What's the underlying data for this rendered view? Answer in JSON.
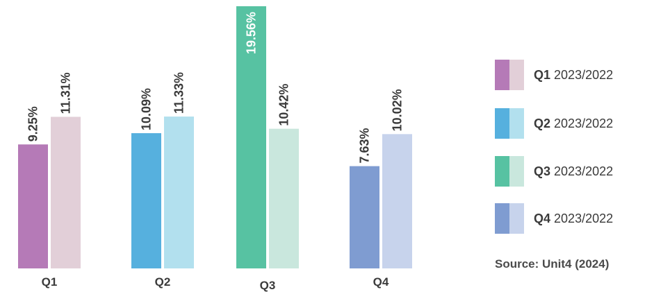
{
  "chart_data": {
    "type": "bar",
    "categories": [
      "Q1",
      "Q2",
      "Q3",
      "Q4"
    ],
    "series": [
      {
        "name": "2023",
        "values": [
          9.25,
          10.09,
          19.56,
          7.63
        ]
      },
      {
        "name": "2022",
        "values": [
          11.31,
          11.33,
          10.42,
          10.02
        ]
      }
    ],
    "data_labels": [
      [
        "9.25%",
        "11.31%"
      ],
      [
        "10.09%",
        "11.33%"
      ],
      [
        "19.56%",
        "10.42%"
      ],
      [
        "7.63%",
        "10.02%"
      ]
    ],
    "colors": [
      [
        "#b57ab7",
        "#e2cfd8"
      ],
      [
        "#56b0de",
        "#b2e0ee"
      ],
      [
        "#57c2a2",
        "#c9e7dd"
      ],
      [
        "#7f9cd1",
        "#c7d3ec"
      ]
    ],
    "ylim": [
      0,
      19.56
    ],
    "grid": false,
    "legend_placement": "right",
    "legend": [
      {
        "quarter": "Q1",
        "period": "2023/2022"
      },
      {
        "quarter": "Q2",
        "period": "2023/2022"
      },
      {
        "quarter": "Q3",
        "period": "2023/2022"
      },
      {
        "quarter": "Q4",
        "period": "2023/2022"
      }
    ],
    "source": "Source: Unit4 (2024)"
  }
}
